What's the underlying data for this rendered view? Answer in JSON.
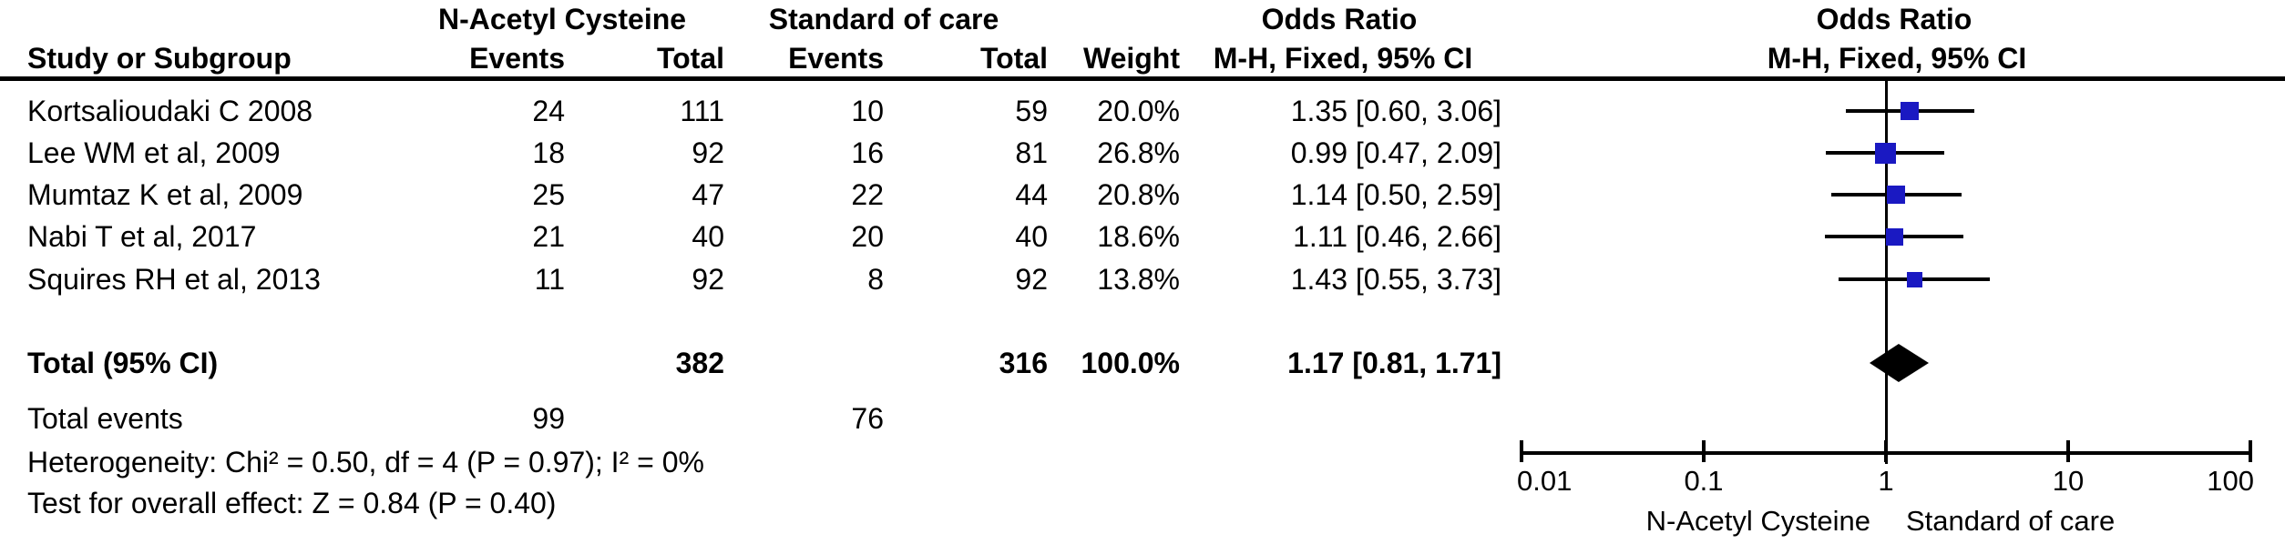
{
  "colors": {
    "marker_blue": "#1a19c2",
    "diamond_black": "#000000",
    "line_black": "#000000",
    "background": "#ffffff"
  },
  "header": {
    "study_col": "Study or Subgroup",
    "group1": "N-Acetyl Cysteine",
    "group2": "Standard of care",
    "events_col": "Events",
    "total_col": "Total",
    "events_col2": "Events",
    "total_col2": "Total",
    "weight_col": "Weight",
    "or_title": "Odds Ratio",
    "or_subtitle": "M-H, Fixed, 95% CI",
    "plot_title": "Odds Ratio",
    "plot_subtitle": "M-H, Fixed, 95% CI"
  },
  "chart_data": {
    "type": "forest",
    "effect_measure": "Odds Ratio, M-H, Fixed, 95% CI",
    "x_scale": "log10",
    "axis_ticks": [
      0.01,
      0.1,
      1,
      10,
      100
    ],
    "axis_tick_labels": [
      "0.01",
      "0.1",
      "1",
      "10",
      "100"
    ],
    "favors_left": "N-Acetyl Cysteine",
    "favors_right": "Standard of care",
    "studies": [
      {
        "name": "Kortsalioudaki C 2008",
        "nac_events": 24,
        "nac_total": 111,
        "soc_events": 10,
        "soc_total": 59,
        "weight": "20.0%",
        "weight_pct": 20.0,
        "or": 1.35,
        "ci_low": 0.6,
        "ci_high": 3.06,
        "or_label": "1.35 [0.60, 3.06]"
      },
      {
        "name": "Lee WM et al, 2009",
        "nac_events": 18,
        "nac_total": 92,
        "soc_events": 16,
        "soc_total": 81,
        "weight": "26.8%",
        "weight_pct": 26.8,
        "or": 0.99,
        "ci_low": 0.47,
        "ci_high": 2.09,
        "or_label": "0.99 [0.47, 2.09]"
      },
      {
        "name": "Mumtaz K et al, 2009",
        "nac_events": 25,
        "nac_total": 47,
        "soc_events": 22,
        "soc_total": 44,
        "weight": "20.8%",
        "weight_pct": 20.8,
        "or": 1.14,
        "ci_low": 0.5,
        "ci_high": 2.59,
        "or_label": "1.14 [0.50, 2.59]"
      },
      {
        "name": "Nabi T et al, 2017",
        "nac_events": 21,
        "nac_total": 40,
        "soc_events": 20,
        "soc_total": 40,
        "weight": "18.6%",
        "weight_pct": 18.6,
        "or": 1.11,
        "ci_low": 0.46,
        "ci_high": 2.66,
        "or_label": "1.11 [0.46, 2.66]"
      },
      {
        "name": "Squires RH et al, 2013",
        "nac_events": 11,
        "nac_total": 92,
        "soc_events": 8,
        "soc_total": 92,
        "weight": "13.8%",
        "weight_pct": 13.8,
        "or": 1.43,
        "ci_low": 0.55,
        "ci_high": 3.73,
        "or_label": "1.43 [0.55, 3.73]"
      }
    ],
    "total": {
      "label": "Total (95% CI)",
      "nac_total": 382,
      "soc_total": 316,
      "weight": "100.0%",
      "or": 1.17,
      "ci_low": 0.81,
      "ci_high": 1.71,
      "or_label": "1.17 [0.81, 1.71]"
    },
    "total_events": {
      "label": "Total events",
      "nac_events": 99,
      "soc_events": 76
    },
    "heterogeneity": "Heterogeneity: Chi² = 0.50, df = 4 (P = 0.97); I² = 0%",
    "overall_effect": "Test for overall effect: Z = 0.84 (P = 0.40)"
  }
}
